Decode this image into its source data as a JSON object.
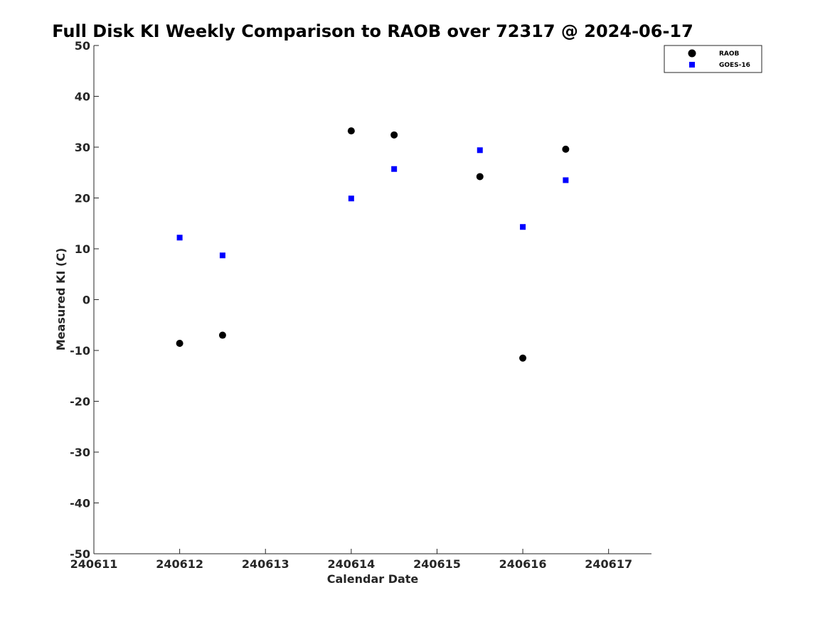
{
  "chart_data": {
    "type": "scatter",
    "title": "Full Disk KI Weekly Comparison to RAOB over 72317 @ 2024-06-17",
    "xlabel": "Calendar Date",
    "ylabel": "Measured KI (C)",
    "xlim": [
      240611,
      240617.5
    ],
    "ylim": [
      -50,
      50
    ],
    "x_ticks": [
      "240611",
      "240612",
      "240613",
      "240614",
      "240615",
      "240616",
      "240617"
    ],
    "y_ticks": [
      "50",
      "40",
      "30",
      "20",
      "10",
      "0",
      "-10",
      "-20",
      "-30",
      "-40",
      "-50"
    ],
    "grid": false,
    "legend_position": "top-right",
    "series": [
      {
        "name": "RAOB",
        "marker": "circle",
        "color": "#000000",
        "points": [
          {
            "x": 240612.0,
            "y": -8.6
          },
          {
            "x": 240612.5,
            "y": -7.0
          },
          {
            "x": 240614.0,
            "y": 33.2
          },
          {
            "x": 240614.5,
            "y": 32.4
          },
          {
            "x": 240615.5,
            "y": 24.2
          },
          {
            "x": 240616.0,
            "y": -11.5
          },
          {
            "x": 240616.5,
            "y": 29.6
          }
        ]
      },
      {
        "name": "GOES-16",
        "marker": "square",
        "color": "#0000ff",
        "points": [
          {
            "x": 240612.0,
            "y": 12.2
          },
          {
            "x": 240612.5,
            "y": 8.7
          },
          {
            "x": 240614.0,
            "y": 19.9
          },
          {
            "x": 240614.5,
            "y": 25.7
          },
          {
            "x": 240615.5,
            "y": 29.4
          },
          {
            "x": 240616.0,
            "y": 14.3
          },
          {
            "x": 240616.5,
            "y": 23.5
          }
        ]
      }
    ]
  }
}
